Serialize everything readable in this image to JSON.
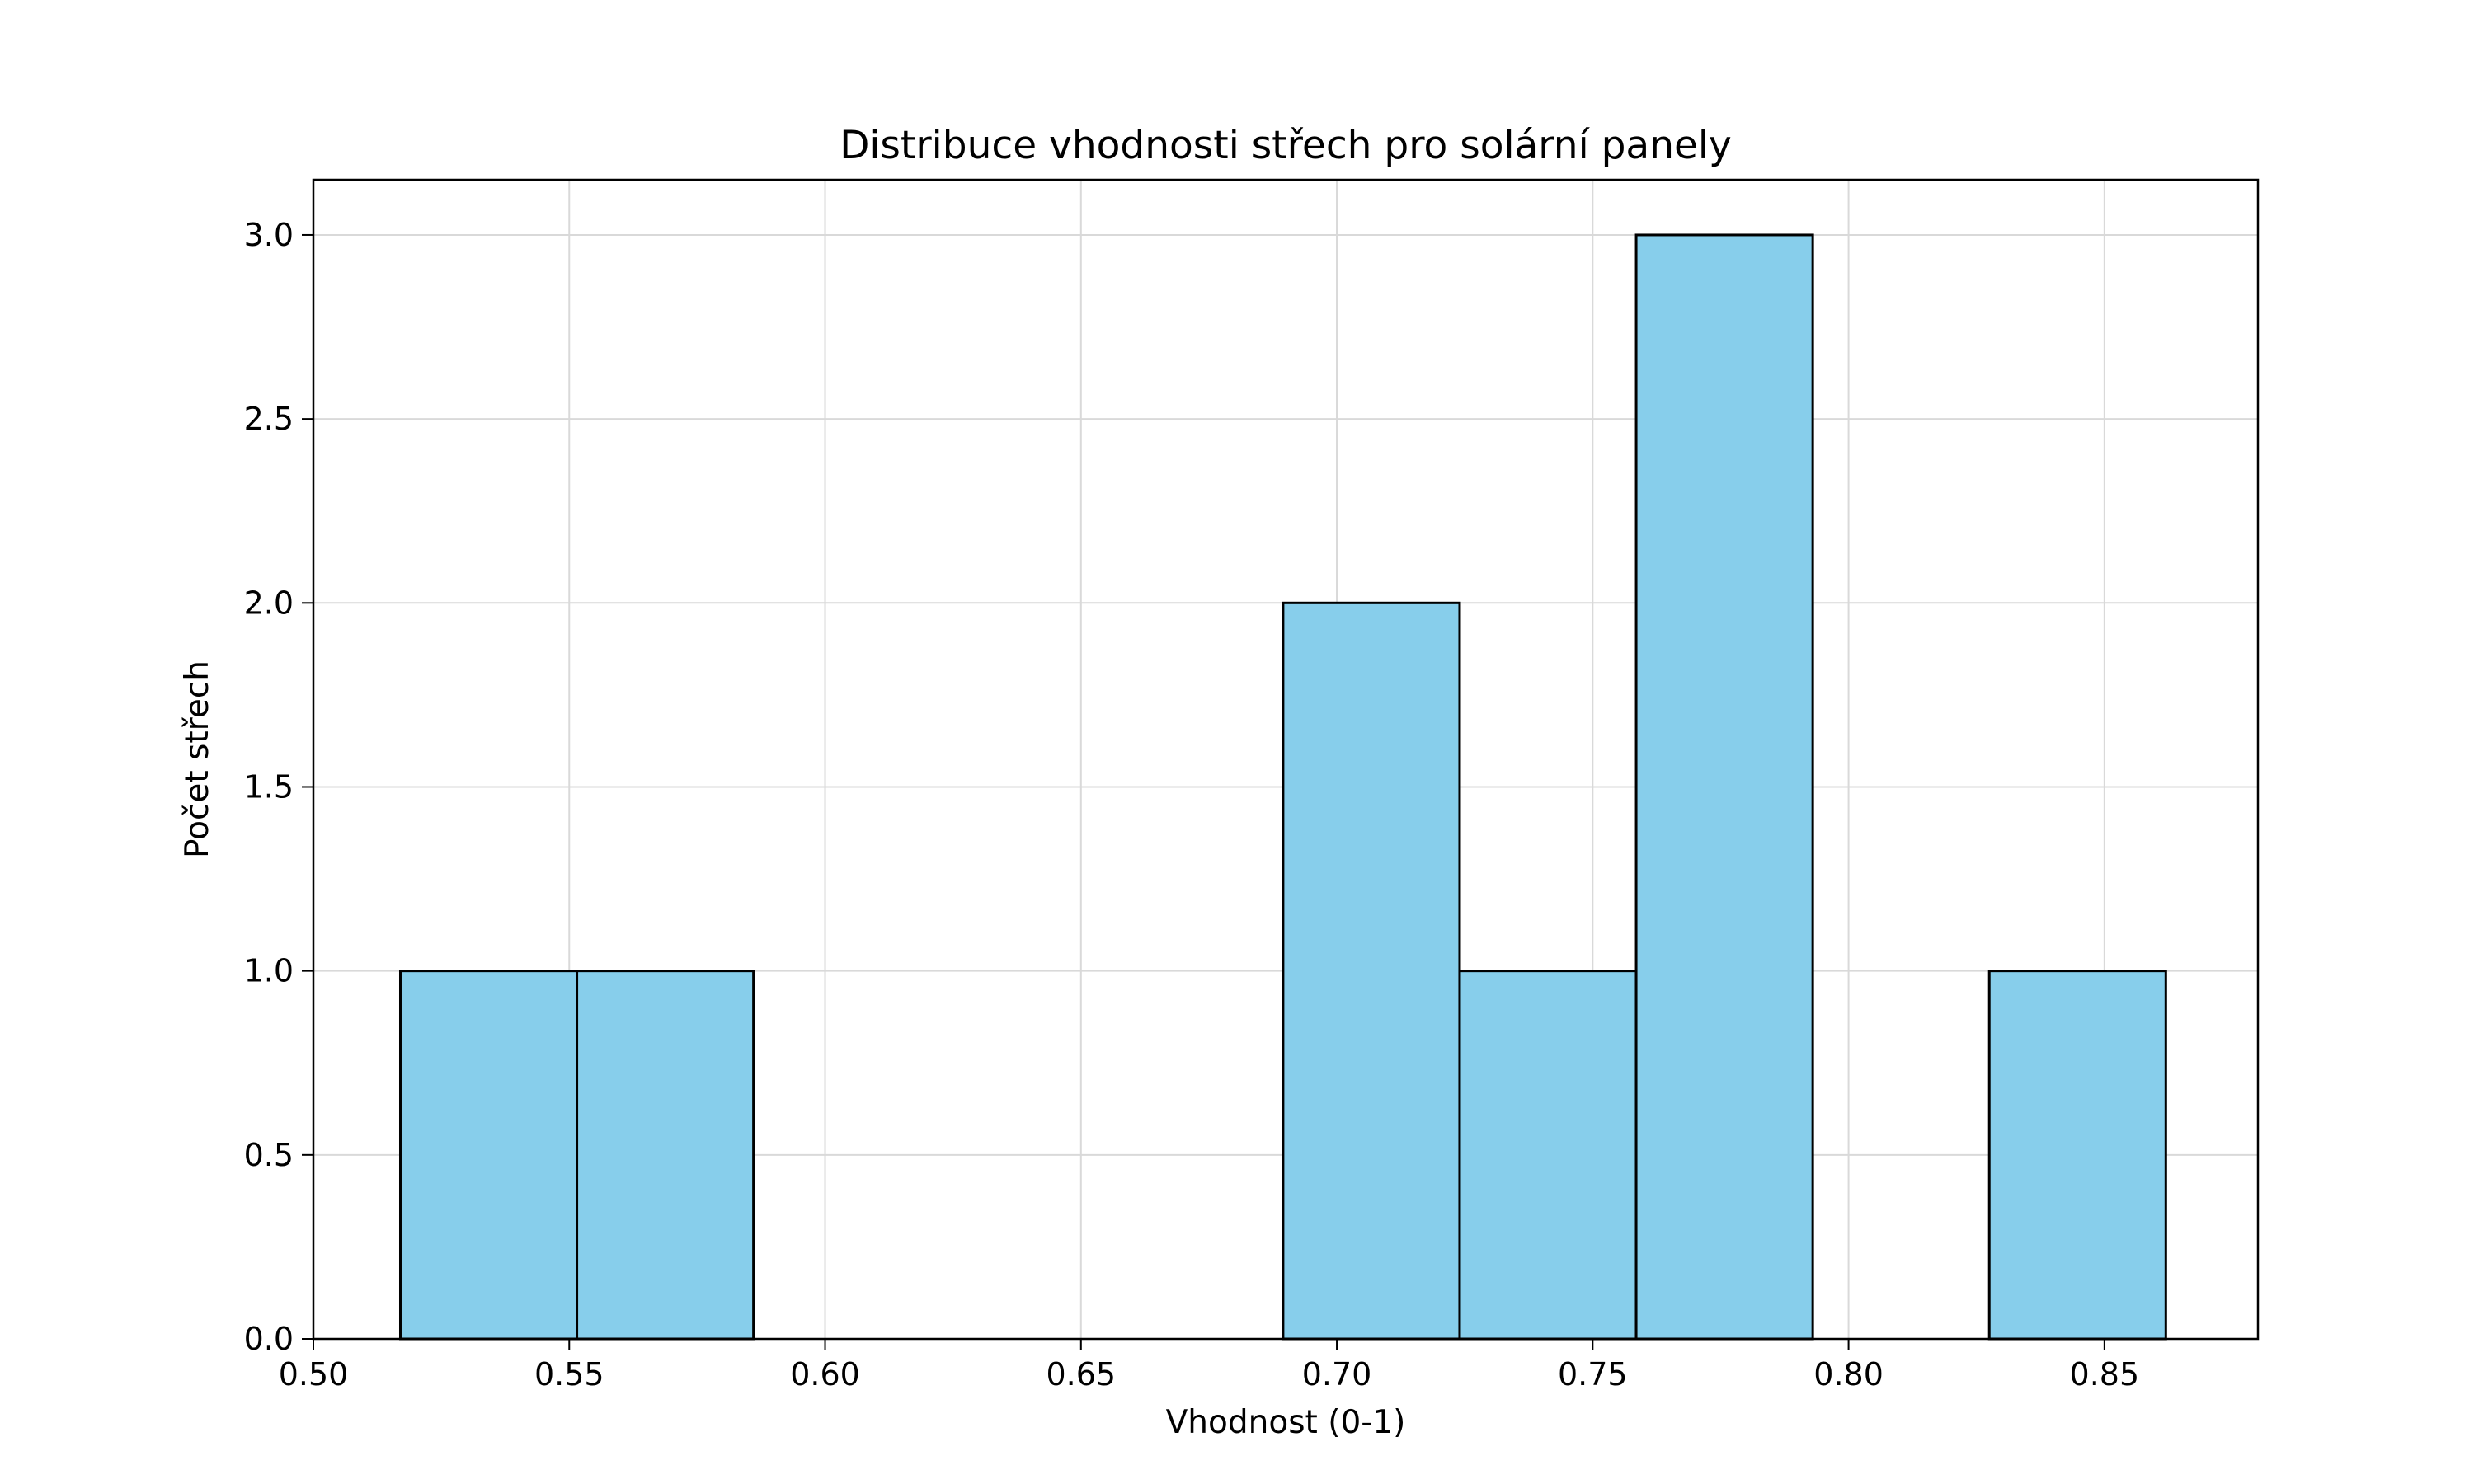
{
  "chart_data": {
    "type": "histogram",
    "title": "Distribuce vhodnosti střech pro solární panely",
    "xlabel": "Vhodnost (0-1)",
    "ylabel": "Počet střech",
    "xlim": [
      0.5,
      0.88
    ],
    "ylim": [
      0,
      3.15
    ],
    "xticks": [
      0.5,
      0.55,
      0.6,
      0.65,
      0.7,
      0.75,
      0.8,
      0.85
    ],
    "xtick_labels": [
      "0.50",
      "0.55",
      "0.60",
      "0.65",
      "0.70",
      "0.75",
      "0.80",
      "0.85"
    ],
    "yticks": [
      0.0,
      0.5,
      1.0,
      1.5,
      2.0,
      2.5,
      3.0
    ],
    "ytick_labels": [
      "0.0",
      "0.5",
      "1.0",
      "1.5",
      "2.0",
      "2.5",
      "3.0"
    ],
    "bin_edges": [
      0.517,
      0.5515,
      0.586,
      0.6205,
      0.655,
      0.6895,
      0.724,
      0.7585,
      0.793,
      0.8275,
      0.862
    ],
    "counts": [
      1,
      1,
      0,
      0,
      0,
      2,
      1,
      3,
      0,
      1
    ],
    "grid": true,
    "bar_color": "#87CEEB",
    "edge_color": "#000000"
  }
}
